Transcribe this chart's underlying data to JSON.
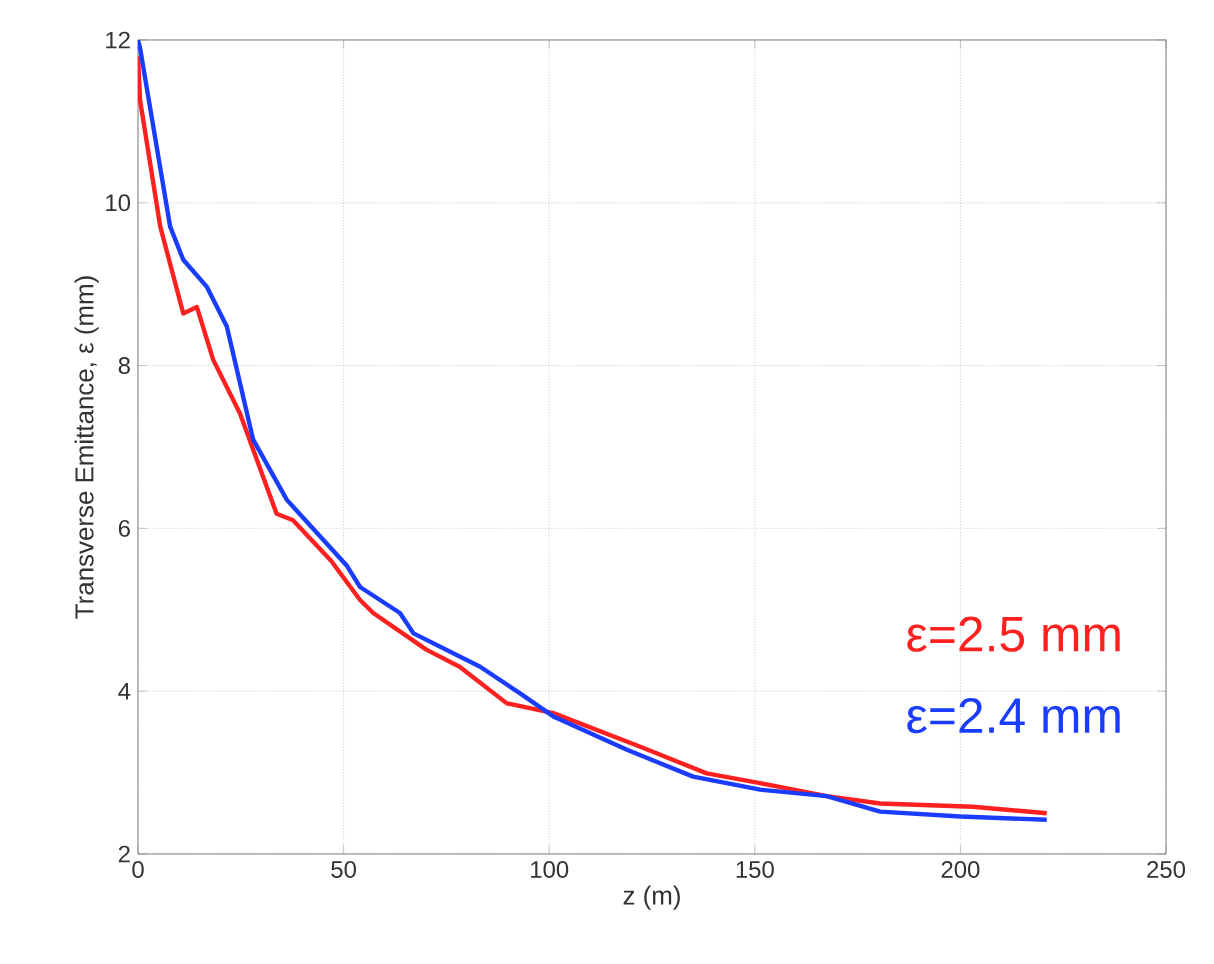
{
  "chart_data": {
    "type": "line",
    "xlabel": "z (m)",
    "ylabel": "Transverse Emittance, ε (mm)",
    "xlim": [
      0,
      250
    ],
    "ylim": [
      2,
      12
    ],
    "xticks": [
      0,
      50,
      100,
      150,
      200,
      250
    ],
    "yticks": [
      2,
      4,
      6,
      8,
      10,
      12
    ],
    "grid": true,
    "line_style": "solid",
    "annotations": [
      "ε=2.5 mm",
      "ε=2.4 mm"
    ],
    "series": [
      {
        "color": "#ff2020",
        "x": [
          0,
          0.5,
          5.4,
          11,
          14.3,
          18.3,
          24.8,
          33.7,
          37.7,
          47,
          54,
          57.2,
          70.1,
          78.2,
          89.7,
          101,
          122,
          138.3,
          151.3,
          167.5,
          180.5,
          203,
          221
        ],
        "values": [
          11.8,
          11.26,
          9.71,
          8.64,
          8.72,
          8.07,
          7.41,
          6.18,
          6.1,
          5.6,
          5.12,
          4.96,
          4.51,
          4.3,
          3.85,
          3.73,
          3.32,
          2.99,
          2.87,
          2.71,
          2.62,
          2.58,
          2.5
        ]
      },
      {
        "color": "#1a3cff",
        "x": [
          0,
          0.5,
          7.8,
          11,
          16.7,
          21.6,
          28,
          36.2,
          50.8,
          54,
          63.7,
          67,
          83.2,
          93,
          101,
          118.9,
          135,
          151.3,
          167.5,
          180.5,
          200,
          221
        ],
        "values": [
          12,
          11.9,
          9.71,
          9.3,
          8.97,
          8.48,
          7.09,
          6.35,
          5.54,
          5.28,
          4.96,
          4.71,
          4.3,
          3.97,
          3.69,
          3.28,
          2.95,
          2.79,
          2.71,
          2.52,
          2.46,
          2.42
        ]
      }
    ]
  }
}
